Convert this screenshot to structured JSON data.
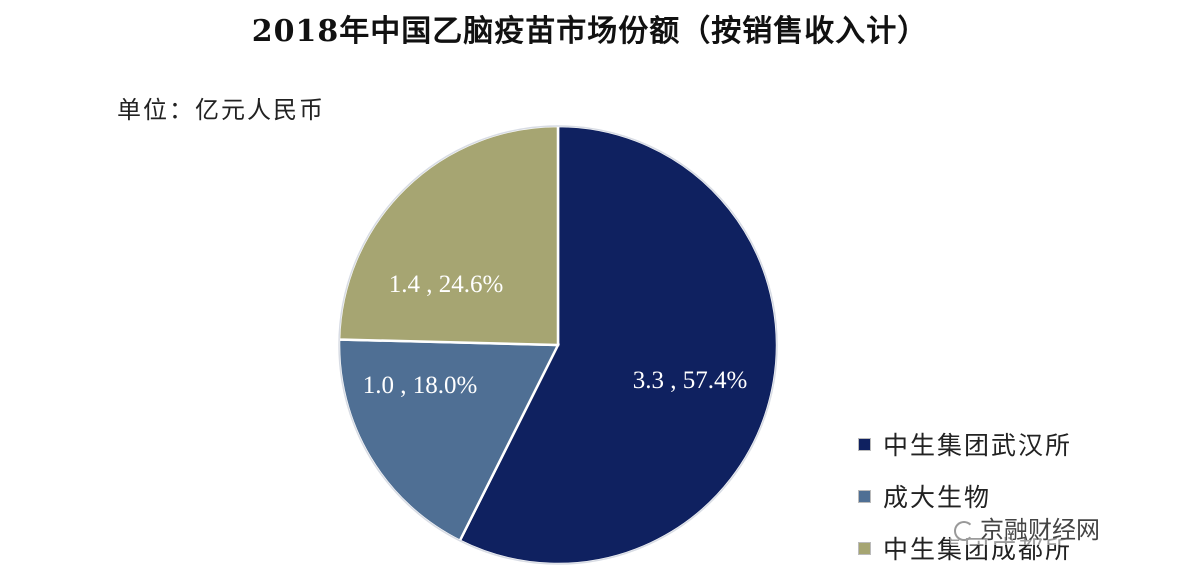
{
  "title": "2018年中国乙脑疫苗市场份额（按销售收入计）",
  "unit_label": "单位：亿元人民币",
  "colors": {
    "wuhan": "#0f2160",
    "chengda": "#4f6f94",
    "chengdu": "#a6a572"
  },
  "slices": [
    {
      "name": "中生集团武汉所",
      "value": 3.3,
      "percent": 57.4,
      "label": "3.3 , 57.4%",
      "color": "#0f2160"
    },
    {
      "name": "成大生物",
      "value": 1.0,
      "percent": 18.0,
      "label": "1.0 , 18.0%",
      "color": "#4f6f94"
    },
    {
      "name": "中生集团成都所",
      "value": 1.4,
      "percent": 24.6,
      "label": "1.4 , 24.6%",
      "color": "#a6a572"
    }
  ],
  "legend": [
    {
      "label": "中生集团武汉所",
      "color": "#0f2160"
    },
    {
      "label": "成大生物",
      "color": "#4f6f94"
    },
    {
      "label": "中生集团成都所",
      "color": "#a6a572"
    }
  ],
  "watermark": "京融财经网",
  "chart_data": {
    "type": "pie",
    "title": "2018年中国乙脑疫苗市场份额（按销售收入计）",
    "subtitle": "单位：亿元人民币",
    "categories": [
      "中生集团武汉所",
      "成大生物",
      "中生集团成都所"
    ],
    "values": [
      3.3,
      1.0,
      1.4
    ],
    "percentages": [
      57.4,
      18.0,
      24.6
    ],
    "data_labels": [
      "3.3 , 57.4%",
      "1.0 , 18.0%",
      "1.4 , 24.6%"
    ],
    "colors": [
      "#0f2160",
      "#4f6f94",
      "#a6a572"
    ],
    "legend_position": "right-bottom",
    "start_angle": "12 o'clock, clockwise"
  }
}
